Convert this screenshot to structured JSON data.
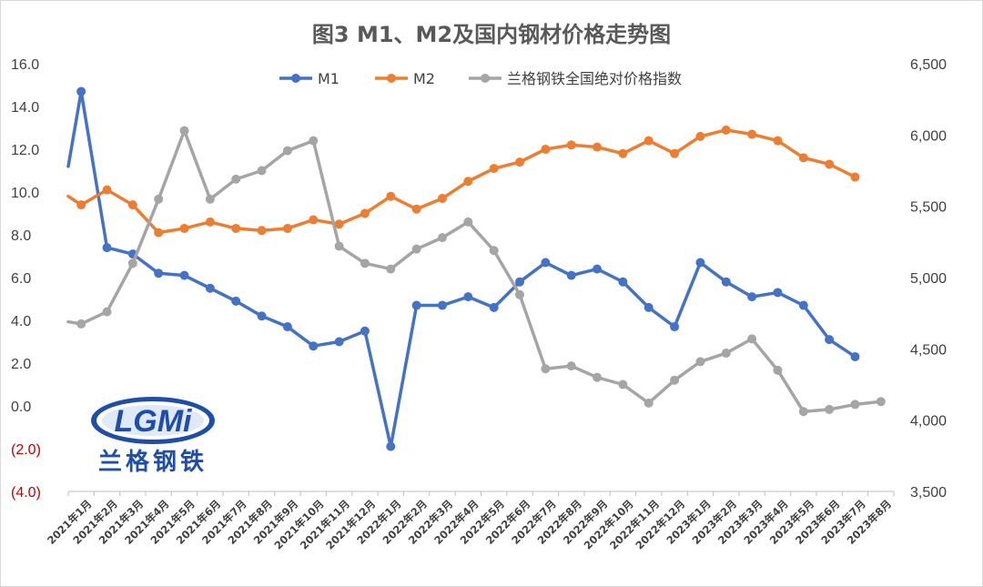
{
  "chart_data": {
    "type": "line",
    "title": "图3 M1、M2及国内钢材价格走势图",
    "categories": [
      "2021年1月",
      "2021年2月",
      "2021年3月",
      "2021年4月",
      "2021年5月",
      "2021年6月",
      "2021年7月",
      "2021年8月",
      "2021年9月",
      "2021年10月",
      "2021年11月",
      "2021年12月",
      "2022年1月",
      "2022年2月",
      "2022年3月",
      "2022年4月",
      "2022年5月",
      "2022年6月",
      "2022年7月",
      "2022年8月",
      "2022年9月",
      "2022年10月",
      "2022年11月",
      "2022年12月",
      "2023年1月",
      "2023年2月",
      "2023年3月",
      "2023年4月",
      "2023年5月",
      "2023年6月",
      "2023年7月",
      "2023年8月"
    ],
    "series": [
      {
        "name": "M1",
        "axis": "left",
        "color": "#4472c4",
        "values": [
          14.7,
          7.4,
          7.1,
          6.2,
          6.1,
          5.5,
          4.9,
          4.2,
          3.7,
          2.8,
          3.0,
          3.5,
          -1.9,
          4.7,
          4.7,
          5.1,
          4.6,
          5.8,
          6.7,
          6.1,
          6.4,
          5.8,
          4.6,
          3.7,
          6.7,
          5.8,
          5.1,
          5.3,
          4.7,
          3.1,
          2.3,
          null
        ],
        "lead_in": 11.2
      },
      {
        "name": "M2",
        "axis": "left",
        "color": "#ed7d31",
        "values": [
          9.4,
          10.1,
          9.4,
          8.1,
          8.3,
          8.6,
          8.3,
          8.2,
          8.3,
          8.7,
          8.5,
          9.0,
          9.8,
          9.2,
          9.7,
          10.5,
          11.1,
          11.4,
          12.0,
          12.2,
          12.1,
          11.8,
          12.4,
          11.8,
          12.6,
          12.9,
          12.7,
          12.4,
          11.6,
          11.3,
          10.7,
          null
        ],
        "lead_in": 9.8
      },
      {
        "name": "兰格钢铁全国绝对价格指数",
        "axis": "right",
        "color": "#a5a5a5",
        "values": [
          4675,
          4760,
          5100,
          5550,
          6030,
          5550,
          5690,
          5750,
          5890,
          5960,
          5220,
          5100,
          5060,
          5200,
          5280,
          5390,
          5190,
          4880,
          4360,
          4380,
          4300,
          4250,
          4120,
          4280,
          4410,
          4470,
          4570,
          4350,
          4060,
          4075,
          4110,
          4130
        ],
        "lead_in": 4690
      }
    ],
    "left_axis": {
      "min": -4,
      "max": 16,
      "step": 2,
      "ticks": [
        "(4.0)",
        "(2.0)",
        "0.0",
        "2.0",
        "4.0",
        "6.0",
        "8.0",
        "10.0",
        "12.0",
        "14.0",
        "16.0"
      ],
      "negative_color": "#c00000"
    },
    "right_axis": {
      "min": 3500,
      "max": 6500,
      "step": 500,
      "ticks": [
        "3,500",
        "4,000",
        "4,500",
        "5,000",
        "5,500",
        "6,000",
        "6,500"
      ]
    },
    "legend_position": "top-center",
    "grid": false
  },
  "logo": {
    "text": "LGMi",
    "caption": "兰格钢铁"
  }
}
